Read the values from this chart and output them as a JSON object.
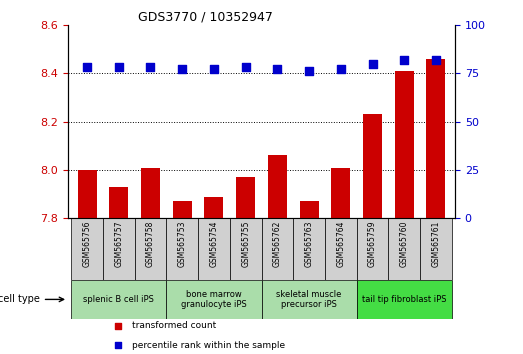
{
  "title": "GDS3770 / 10352947",
  "samples": [
    "GSM565756",
    "GSM565757",
    "GSM565758",
    "GSM565753",
    "GSM565754",
    "GSM565755",
    "GSM565762",
    "GSM565763",
    "GSM565764",
    "GSM565759",
    "GSM565760",
    "GSM565761"
  ],
  "transformed_count": [
    8.0,
    7.93,
    8.01,
    7.87,
    7.89,
    7.97,
    8.06,
    7.87,
    8.01,
    8.23,
    8.41,
    8.46
  ],
  "percentile_rank": [
    78,
    78,
    78,
    77,
    77,
    78,
    77,
    76,
    77,
    80,
    82,
    82
  ],
  "ylim_left": [
    7.8,
    8.6
  ],
  "ylim_right": [
    0,
    100
  ],
  "yticks_left": [
    7.8,
    8.0,
    8.2,
    8.4,
    8.6
  ],
  "yticks_right": [
    0,
    25,
    50,
    75,
    100
  ],
  "bar_color": "#cc0000",
  "dot_color": "#0000cc",
  "groups": [
    {
      "label": "splenic B cell iPS",
      "start": 0,
      "end": 3,
      "color": "#aaddaa"
    },
    {
      "label": "bone marrow\ngranulocyte iPS",
      "start": 3,
      "end": 6,
      "color": "#aaddaa"
    },
    {
      "label": "skeletal muscle\nprecursor iPS",
      "start": 6,
      "end": 9,
      "color": "#aaddaa"
    },
    {
      "label": "tail tip fibroblast iPS",
      "start": 9,
      "end": 12,
      "color": "#44dd44"
    }
  ],
  "legend_items": [
    {
      "label": "transformed count",
      "color": "#cc0000",
      "marker": "s"
    },
    {
      "label": "percentile rank within the sample",
      "color": "#0000cc",
      "marker": "s"
    }
  ],
  "cell_type_label": "cell type",
  "tick_color_left": "#cc0000",
  "tick_color_right": "#0000cc",
  "bar_width": 0.6,
  "dot_size": 30,
  "sample_cell_color": "#d0d0d0",
  "grid_yticks": [
    8.0,
    8.2,
    8.4
  ],
  "ytick_labelsize": 8
}
